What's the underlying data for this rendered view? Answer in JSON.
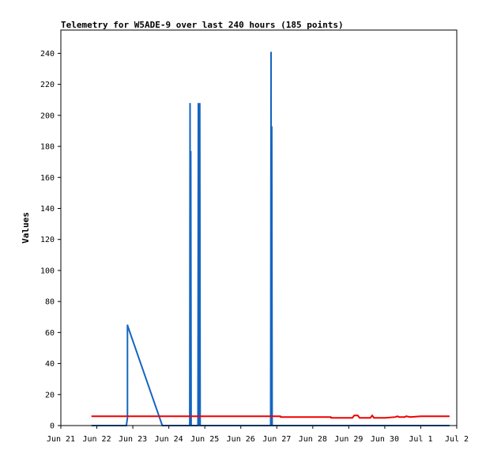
{
  "chart_data": {
    "type": "line",
    "title": "Telemetry for W5ADE-9 over last 240 hours (185 points)",
    "xlabel": "",
    "ylabel": "Values",
    "x_ticks": [
      "Jun 21",
      "Jun 22",
      "Jun 23",
      "Jun 24",
      "Jun 25",
      "Jun 26",
      "Jun 27",
      "Jun 28",
      "Jun 29",
      "Jun 30",
      "Jul 1",
      "Jul 2"
    ],
    "xlim_days": [
      0,
      11
    ],
    "y_ticks": [
      0,
      20,
      40,
      60,
      80,
      100,
      120,
      140,
      160,
      180,
      200,
      220,
      240
    ],
    "ylim": [
      0,
      255
    ],
    "grid": false,
    "legend": "none",
    "series": [
      {
        "color": "#1565c0",
        "x_days": [
          0.85,
          1.82,
          1.85,
          1.85,
          1.86,
          2.82,
          2.93,
          3.58,
          3.59,
          3.6,
          3.61,
          3.62,
          3.81,
          3.82,
          3.83,
          3.84,
          3.85,
          3.86,
          3.87,
          5.83,
          5.84,
          5.85,
          5.86,
          5.87,
          10.8
        ],
        "values": [
          0,
          0,
          5,
          65,
          64,
          0,
          0,
          0,
          208,
          0,
          177,
          0,
          0,
          208,
          0,
          57,
          0,
          208,
          0,
          0,
          241,
          0,
          193,
          0,
          0
        ]
      },
      {
        "color": "#ee0000",
        "x_days": [
          0.85,
          2.0,
          3.0,
          4.0,
          5.0,
          6.0,
          6.1,
          6.11,
          7.0,
          7.5,
          7.51,
          8.0,
          8.1,
          8.15,
          8.25,
          8.3,
          8.6,
          8.65,
          8.7,
          8.8,
          9.0,
          9.3,
          9.35,
          9.4,
          9.55,
          9.6,
          9.7,
          10.0,
          10.8
        ],
        "values": [
          6,
          6,
          6,
          6,
          6,
          6,
          6,
          5.5,
          5.5,
          5.5,
          5,
          5,
          5,
          6.5,
          6.5,
          5,
          5,
          6.5,
          5,
          5,
          5,
          5.5,
          6,
          5.5,
          5.5,
          6,
          5.5,
          6,
          6
        ]
      },
      {
        "color": "#000000",
        "x_days": [
          0.85,
          10.8
        ],
        "values": [
          0,
          0
        ]
      }
    ]
  }
}
